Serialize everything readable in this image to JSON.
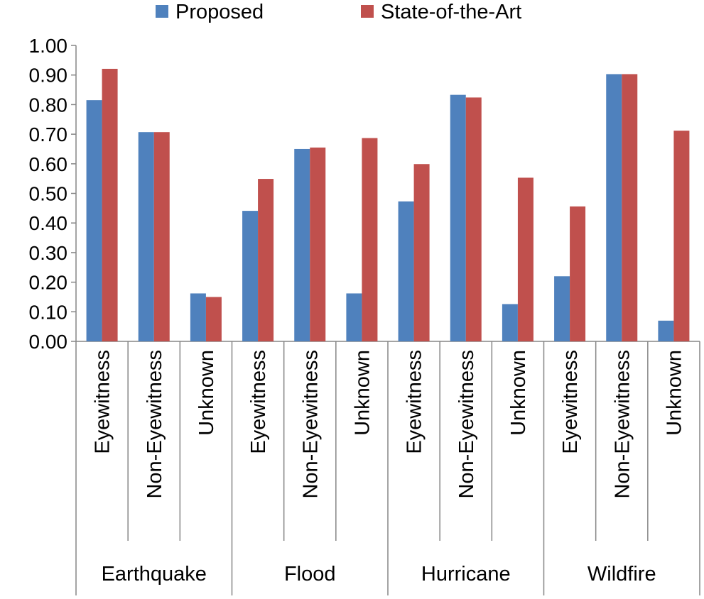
{
  "chart_data": {
    "type": "bar",
    "title": "",
    "xlabel": "",
    "ylabel": "",
    "ylim": [
      0,
      1.0
    ],
    "y_ticks": [
      "0.00",
      "0.10",
      "0.20",
      "0.30",
      "0.40",
      "0.50",
      "0.60",
      "0.70",
      "0.80",
      "0.90",
      "1.00"
    ],
    "groups": [
      {
        "name": "Earthquake",
        "categories": [
          "Eyewitness",
          "Non-Eyewitness",
          "Unknown"
        ]
      },
      {
        "name": "Flood",
        "categories": [
          "Eyewitness",
          "Non-Eyewitness",
          "Unknown"
        ]
      },
      {
        "name": "Hurricane",
        "categories": [
          "Eyewitness",
          "Non-Eyewitness",
          "Unknown"
        ]
      },
      {
        "name": "Wildfire",
        "categories": [
          "Eyewitness",
          "Non-Eyewitness",
          "Unknown"
        ]
      }
    ],
    "categories": [
      "Eyewitness",
      "Non-Eyewitness",
      "Unknown",
      "Eyewitness",
      "Non-Eyewitness",
      "Unknown",
      "Eyewitness",
      "Non-Eyewitness",
      "Unknown",
      "Eyewitness",
      "Non-Eyewitness",
      "Unknown"
    ],
    "series": [
      {
        "name": "Proposed",
        "color": "#4f81bd",
        "values": [
          0.815,
          0.707,
          0.162,
          0.441,
          0.65,
          0.162,
          0.473,
          0.833,
          0.126,
          0.22,
          0.903,
          0.07
        ]
      },
      {
        "name": "State-of-the-Art",
        "color": "#c0504d",
        "values": [
          0.921,
          0.707,
          0.15,
          0.549,
          0.655,
          0.687,
          0.599,
          0.824,
          0.553,
          0.456,
          0.903,
          0.712
        ]
      }
    ],
    "legend": {
      "position": "top",
      "entries": [
        "Proposed",
        "State-of-the-Art"
      ]
    },
    "grid": false
  }
}
